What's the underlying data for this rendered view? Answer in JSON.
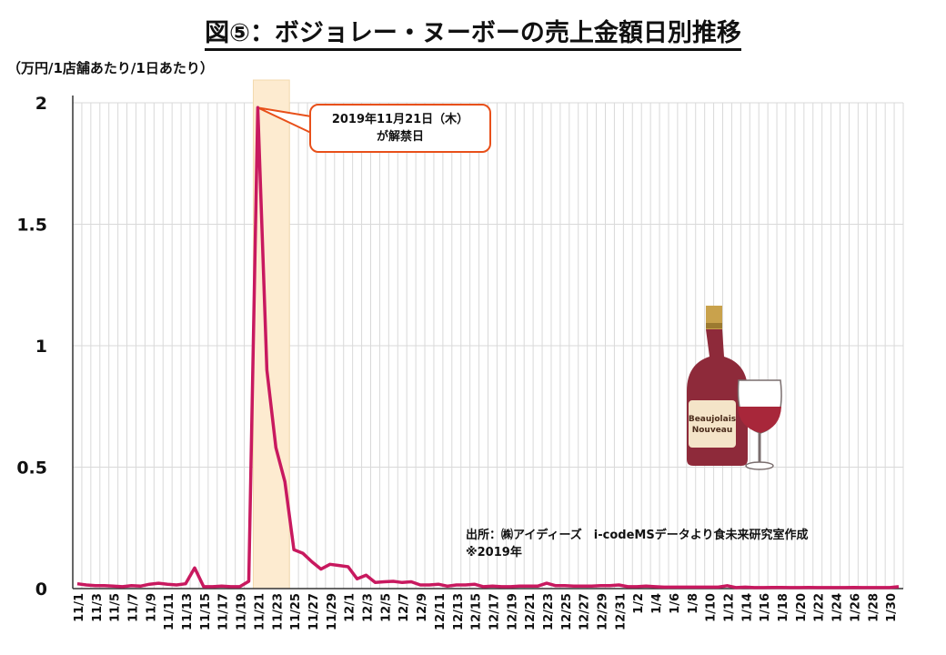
{
  "title": "図⑤：ボジョレー・ヌーボーの売上金額日別推移",
  "unit_label": "（万円/1店舗あたり/1日あたり）",
  "annotation": {
    "line1": "2019年11月21日（木）",
    "line2": "が解禁日"
  },
  "source": {
    "line1": "出所：㈱アイディーズ　i-codeMSデータより食未来研究室作成",
    "line2": "※2019年"
  },
  "colors": {
    "line": "#c8195f",
    "highlight": "#fdebd0",
    "callout_border": "#e8501a",
    "grid": "#d9d9d9"
  },
  "chart_data": {
    "type": "line",
    "title": "図⑤：ボジョレー・ヌーボーの売上金額日別推移",
    "ylabel": "（万円/1店舗あたり/1日あたり）",
    "ylim": [
      0,
      2
    ],
    "y_ticks": [
      "0",
      "0.5",
      "1",
      "1.5",
      "2"
    ],
    "grid": true,
    "highlight_range": [
      "11/21",
      "11/24"
    ],
    "x": [
      "11/1",
      "11/2",
      "11/3",
      "11/4",
      "11/5",
      "11/6",
      "11/7",
      "11/8",
      "11/9",
      "11/10",
      "11/11",
      "11/12",
      "11/13",
      "11/14",
      "11/15",
      "11/16",
      "11/17",
      "11/18",
      "11/19",
      "11/20",
      "11/21",
      "11/22",
      "11/23",
      "11/24",
      "11/25",
      "11/26",
      "11/27",
      "11/28",
      "11/29",
      "11/30",
      "12/1",
      "12/2",
      "12/3",
      "12/4",
      "12/5",
      "12/6",
      "12/7",
      "12/8",
      "12/9",
      "12/10",
      "12/11",
      "12/12",
      "12/13",
      "12/14",
      "12/15",
      "12/16",
      "12/17",
      "12/18",
      "12/19",
      "12/20",
      "12/21",
      "12/22",
      "12/23",
      "12/24",
      "12/25",
      "12/26",
      "12/27",
      "12/28",
      "12/29",
      "12/30",
      "12/31",
      "1/1",
      "1/2",
      "1/3",
      "1/4",
      "1/5",
      "1/6",
      "1/7",
      "1/8",
      "1/9",
      "1/10",
      "1/11",
      "1/12",
      "1/13",
      "1/14",
      "1/15",
      "1/16",
      "1/17",
      "1/18",
      "1/19",
      "1/20",
      "1/21",
      "1/22",
      "1/23",
      "1/24",
      "1/25",
      "1/26",
      "1/27",
      "1/28",
      "1/29",
      "1/30",
      "1/31"
    ],
    "tick_labels": [
      "11/1",
      "11/3",
      "11/5",
      "11/7",
      "11/9",
      "11/11",
      "11/13",
      "11/15",
      "11/17",
      "11/19",
      "11/21",
      "11/23",
      "11/25",
      "11/27",
      "11/29",
      "12/1",
      "12/3",
      "12/5",
      "12/7",
      "12/9",
      "12/11",
      "12/13",
      "12/15",
      "12/17",
      "12/19",
      "12/21",
      "12/23",
      "12/25",
      "12/27",
      "12/29",
      "12/31",
      "1/2",
      "1/4",
      "1/6",
      "1/8",
      "1/10",
      "1/12",
      "1/14",
      "1/16",
      "1/18",
      "1/20",
      "1/22",
      "1/24",
      "1/26",
      "1/28",
      "1/30"
    ],
    "series": [
      {
        "values": [
          0.02,
          0.015,
          0.012,
          0.012,
          0.01,
          0.008,
          0.012,
          0.01,
          0.018,
          0.022,
          0.018,
          0.015,
          0.02,
          0.085,
          0.008,
          0.008,
          0.01,
          0.008,
          0.008,
          0.03,
          1.98,
          0.9,
          0.58,
          0.44,
          0.16,
          0.145,
          0.11,
          0.08,
          0.1,
          0.095,
          0.09,
          0.04,
          0.055,
          0.025,
          0.028,
          0.03,
          0.025,
          0.028,
          0.015,
          0.015,
          0.018,
          0.01,
          0.015,
          0.015,
          0.018,
          0.008,
          0.01,
          0.008,
          0.008,
          0.01,
          0.01,
          0.01,
          0.022,
          0.012,
          0.012,
          0.01,
          0.01,
          0.01,
          0.012,
          0.012,
          0.015,
          0.008,
          0.008,
          0.01,
          0.008,
          0.006,
          0.006,
          0.006,
          0.006,
          0.006,
          0.006,
          0.006,
          0.012,
          0.004,
          0.006,
          0.004,
          0.004,
          0.005,
          0.005,
          0.004,
          0.004,
          0.005,
          0.004,
          0.004,
          0.004,
          0.004,
          0.005,
          0.004,
          0.004,
          0.004,
          0.004,
          0.008
        ]
      }
    ]
  }
}
